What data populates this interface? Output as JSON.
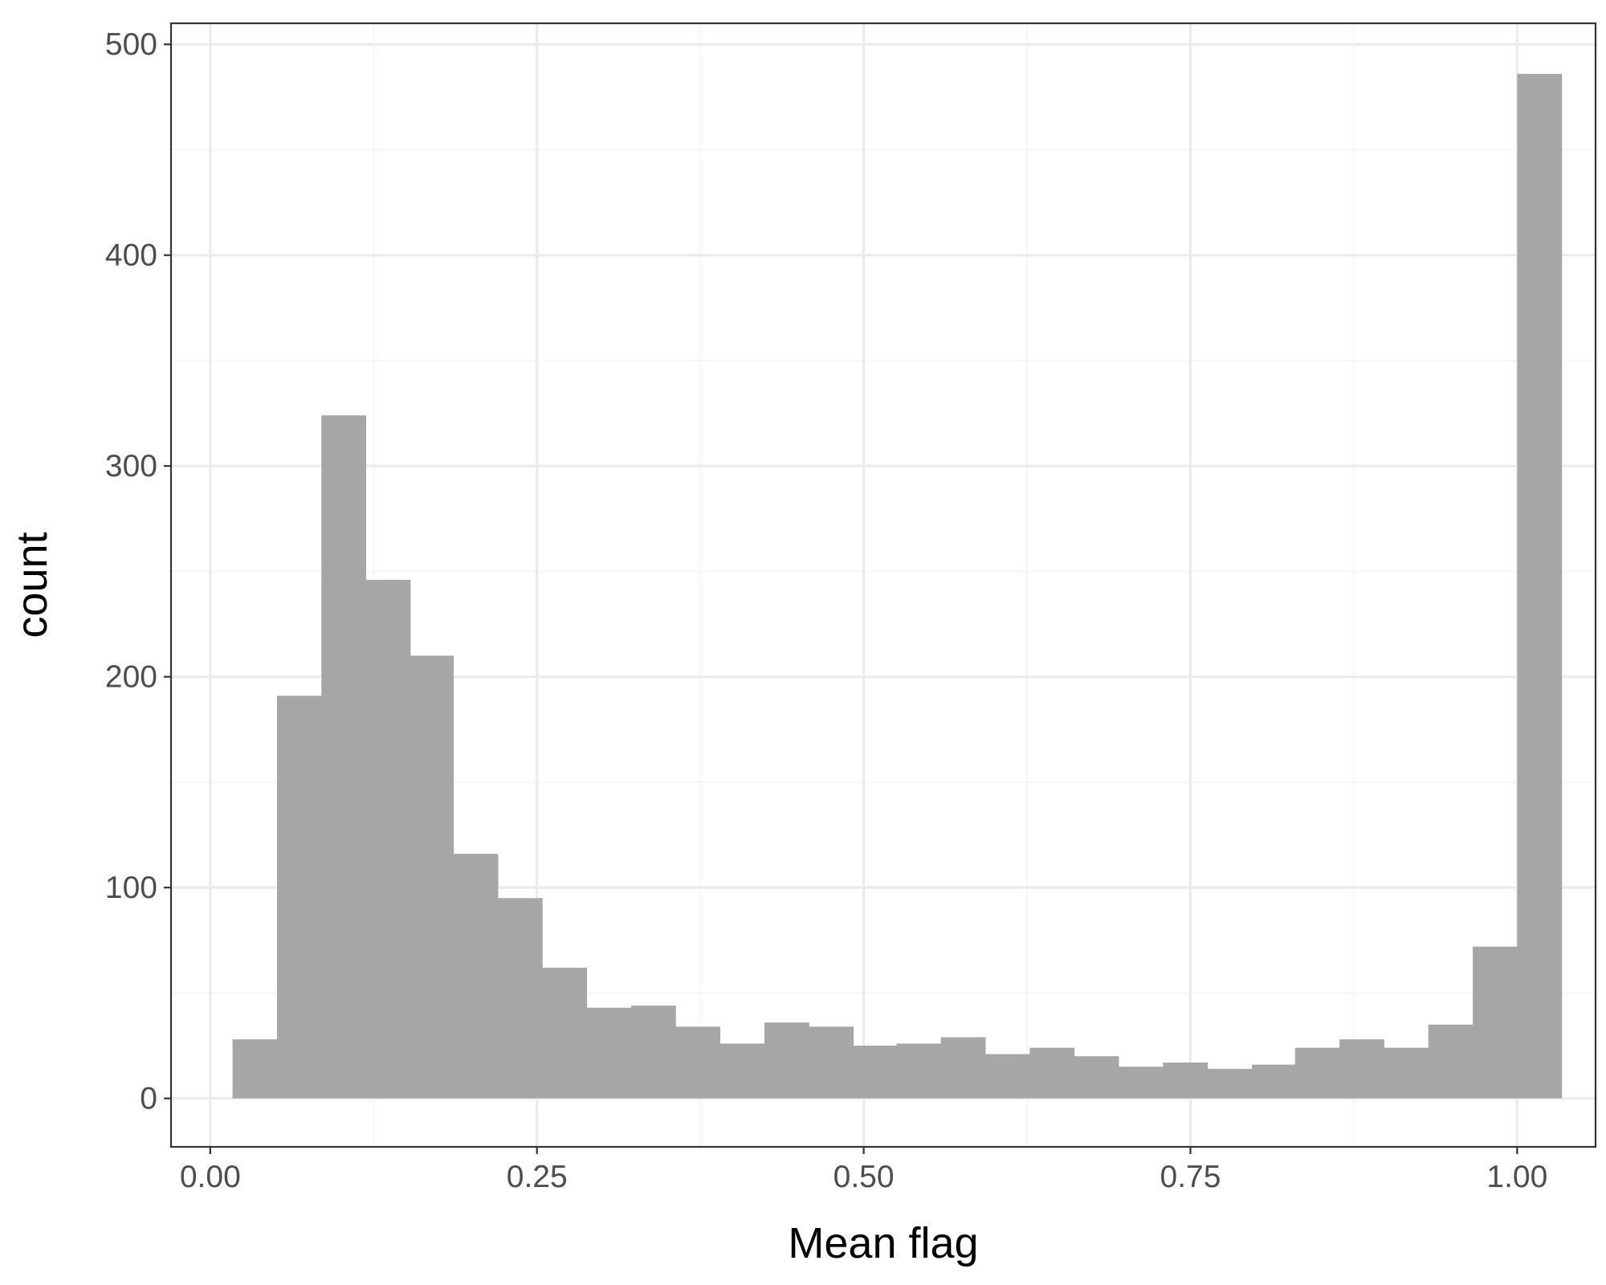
{
  "chart_data": {
    "type": "bar",
    "xlabel": "Mean flag",
    "ylabel": "count",
    "xlim": [
      -0.03,
      1.06
    ],
    "ylim": [
      -23,
      510
    ],
    "xticks": [
      0.0,
      0.25,
      0.5,
      0.75,
      1.0
    ],
    "xtick_labels": [
      "0.00",
      "0.25",
      "0.50",
      "0.75",
      "1.00"
    ],
    "yticks": [
      0,
      100,
      200,
      300,
      400,
      500
    ],
    "ytick_labels": [
      "0",
      "100",
      "200",
      "300",
      "400",
      "500"
    ],
    "bin_width": 0.0339,
    "bin_centers": [
      0.034,
      0.068,
      0.102,
      0.136,
      0.169,
      0.203,
      0.237,
      0.271,
      0.305,
      0.339,
      0.373,
      0.407,
      0.441,
      0.475,
      0.508,
      0.542,
      0.576,
      0.61,
      0.644,
      0.678,
      0.712,
      0.746,
      0.78,
      0.814,
      0.847,
      0.881,
      0.915,
      0.949,
      0.983,
      1.017
    ],
    "values": [
      28,
      191,
      324,
      246,
      210,
      116,
      95,
      62,
      43,
      44,
      34,
      26,
      36,
      34,
      25,
      26,
      29,
      21,
      24,
      20,
      15,
      17,
      14,
      16,
      24,
      28,
      24,
      35,
      72,
      486
    ],
    "grid": true,
    "colors": {
      "bar": "#a6a6a6",
      "grid_major": "#ebebeb",
      "grid_minor": "#f4f4f4",
      "panel_border": "#333333"
    }
  }
}
